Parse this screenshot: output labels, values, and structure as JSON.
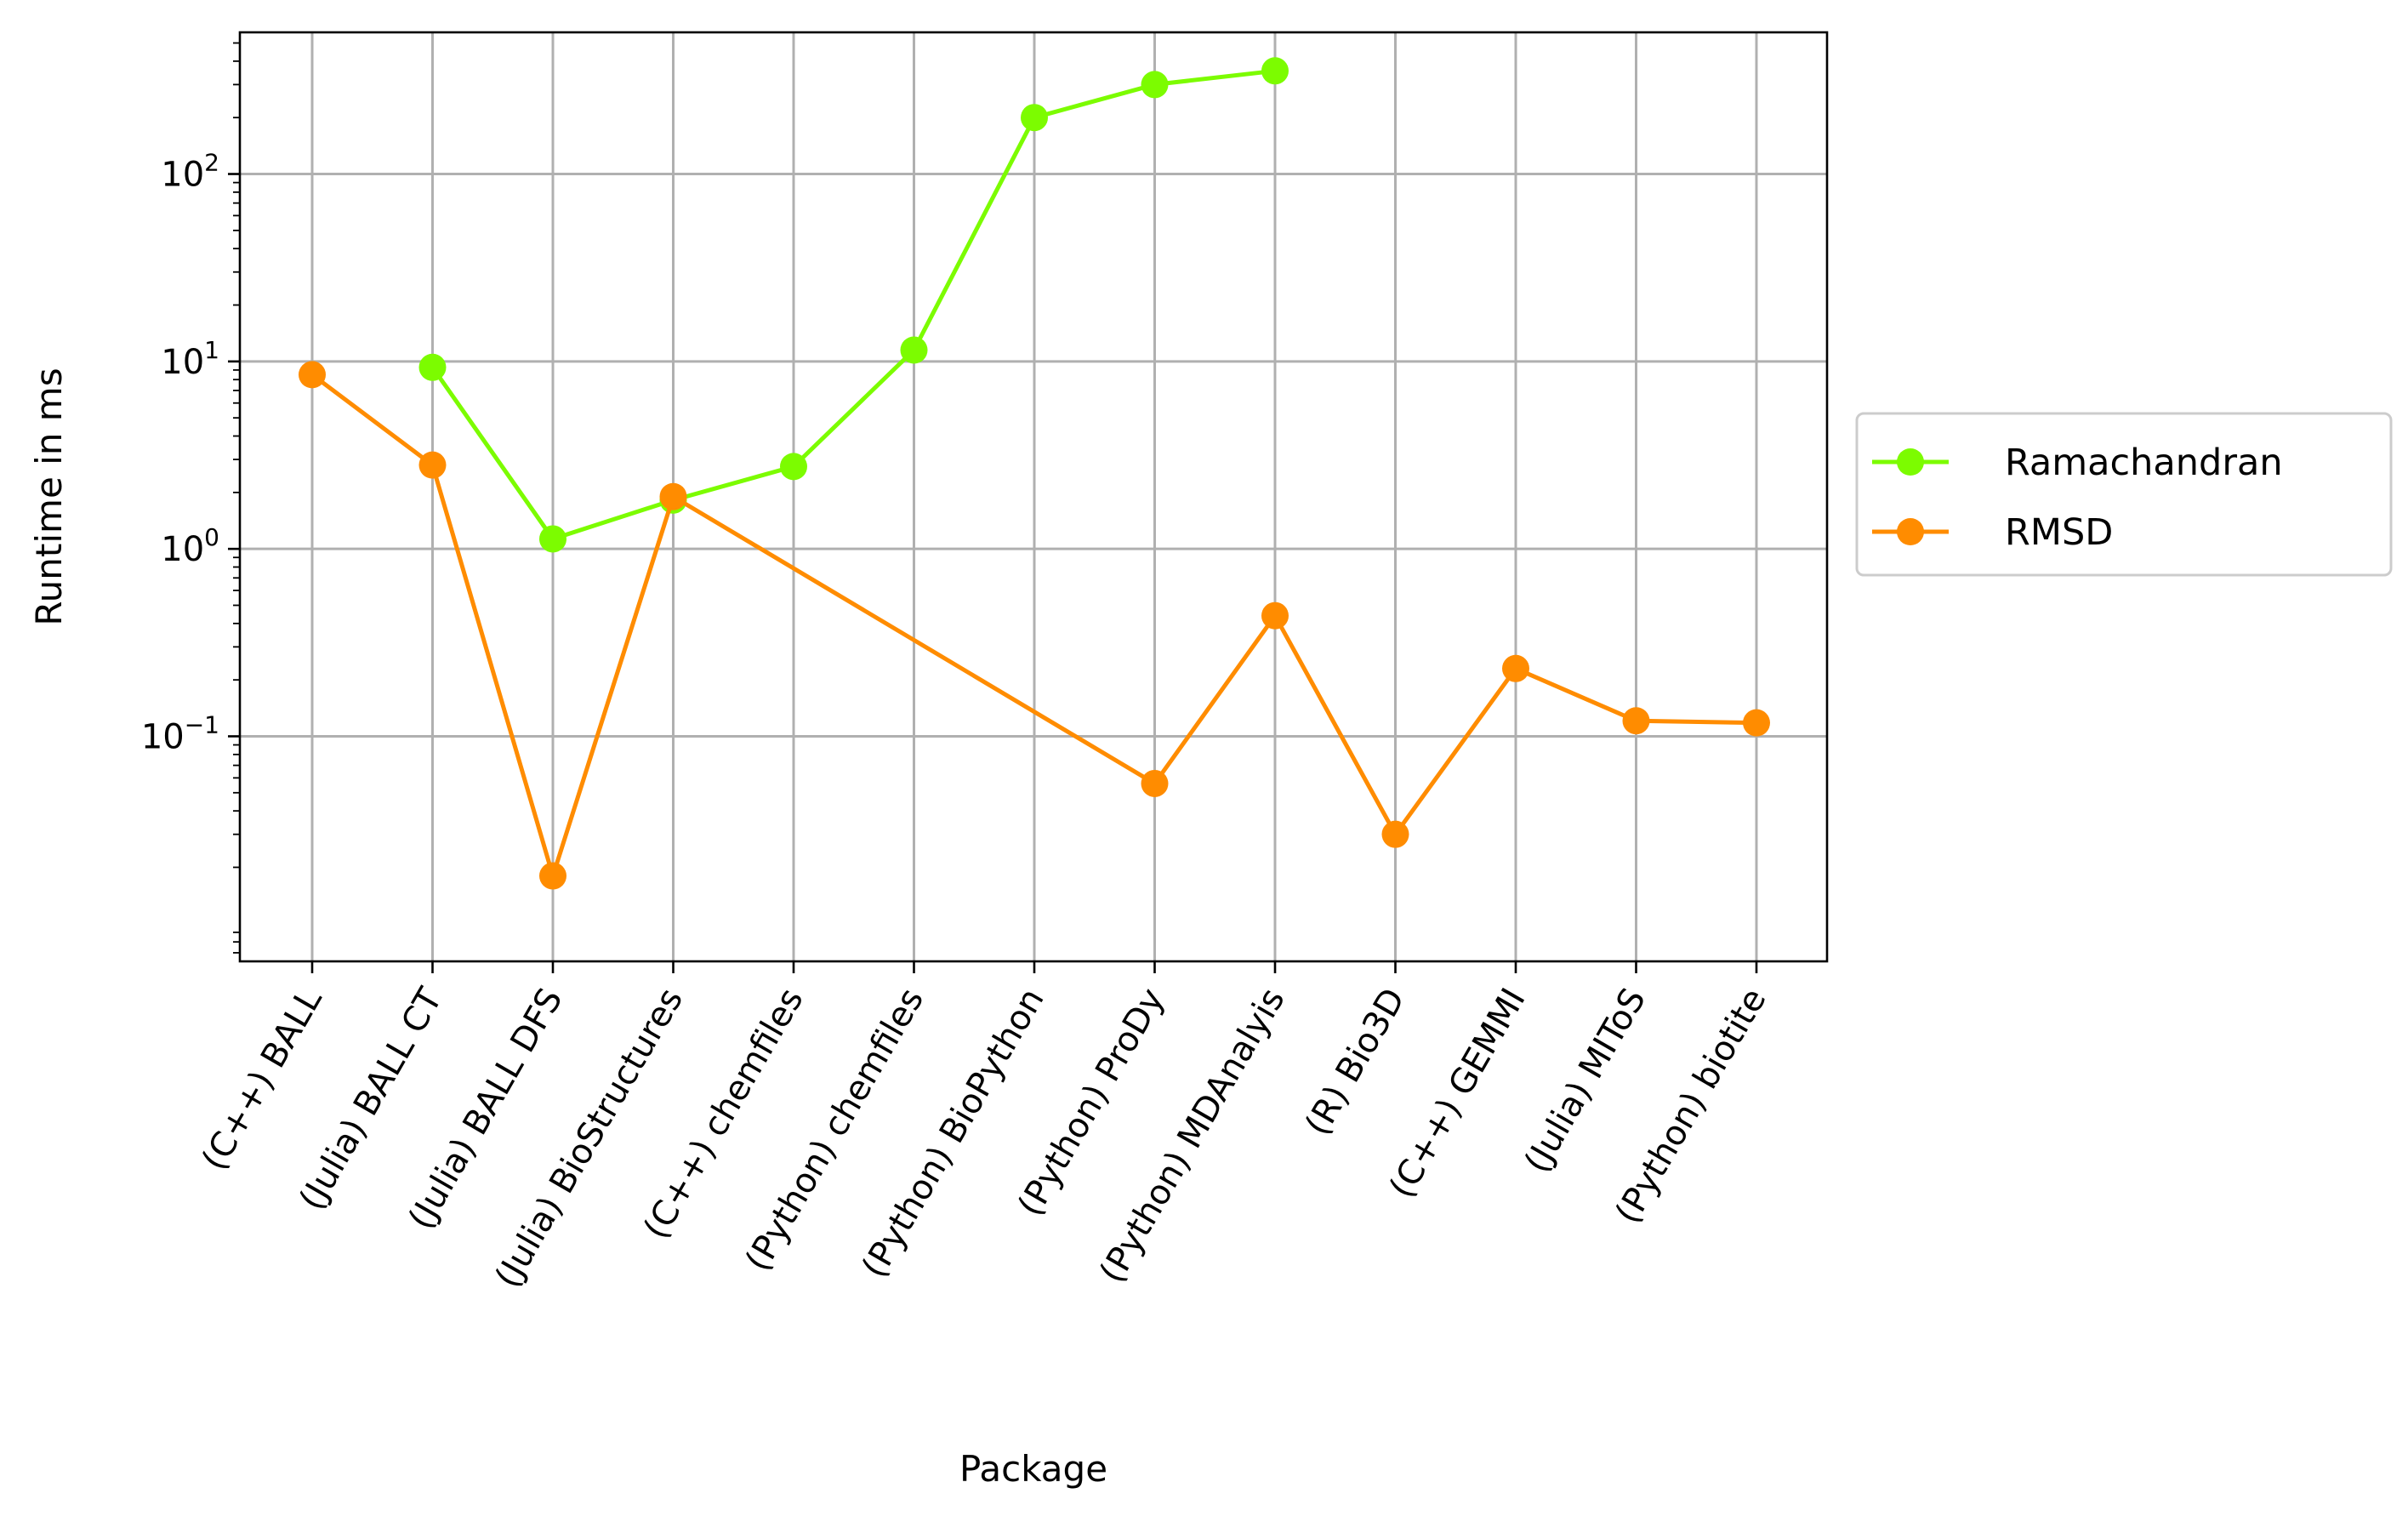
{
  "chart_data": {
    "type": "line",
    "title": "",
    "xlabel": "Package",
    "ylabel": "Runtime in ms",
    "yscale": "log",
    "ylim": [
      0.0063,
      570
    ],
    "grid": true,
    "legend_position": "right",
    "categories": [
      "(C++) BALL",
      "(Julia) BALL CT",
      "(Julia) BALL DFS",
      "(Julia) BioStructures",
      "(C++) chemfiles",
      "(Python) chemfiles",
      "(Python) BioPython",
      "(Python) ProDy",
      "(Python) MDAnalyis",
      "(R) Bio3D",
      "(C++) GEMMI",
      "(Julia) MIToS",
      "(Python) biotite"
    ],
    "y_ticks": [
      {
        "value": 0.1,
        "base": "10",
        "exp": "−1"
      },
      {
        "value": 1,
        "base": "10",
        "exp": "0"
      },
      {
        "value": 10,
        "base": "10",
        "exp": "1"
      },
      {
        "value": 100,
        "base": "10",
        "exp": "2"
      }
    ],
    "series": [
      {
        "name": "Ramachandran",
        "color": "#7cfc00",
        "values": [
          null,
          9.3,
          1.13,
          1.82,
          2.75,
          11.5,
          200,
          300,
          355,
          null,
          null,
          null,
          null
        ]
      },
      {
        "name": "RMSD",
        "color": "#ff8c00",
        "values": [
          8.5,
          2.8,
          0.018,
          1.9,
          null,
          null,
          null,
          0.056,
          0.44,
          0.03,
          0.23,
          0.121,
          0.118
        ]
      }
    ]
  }
}
